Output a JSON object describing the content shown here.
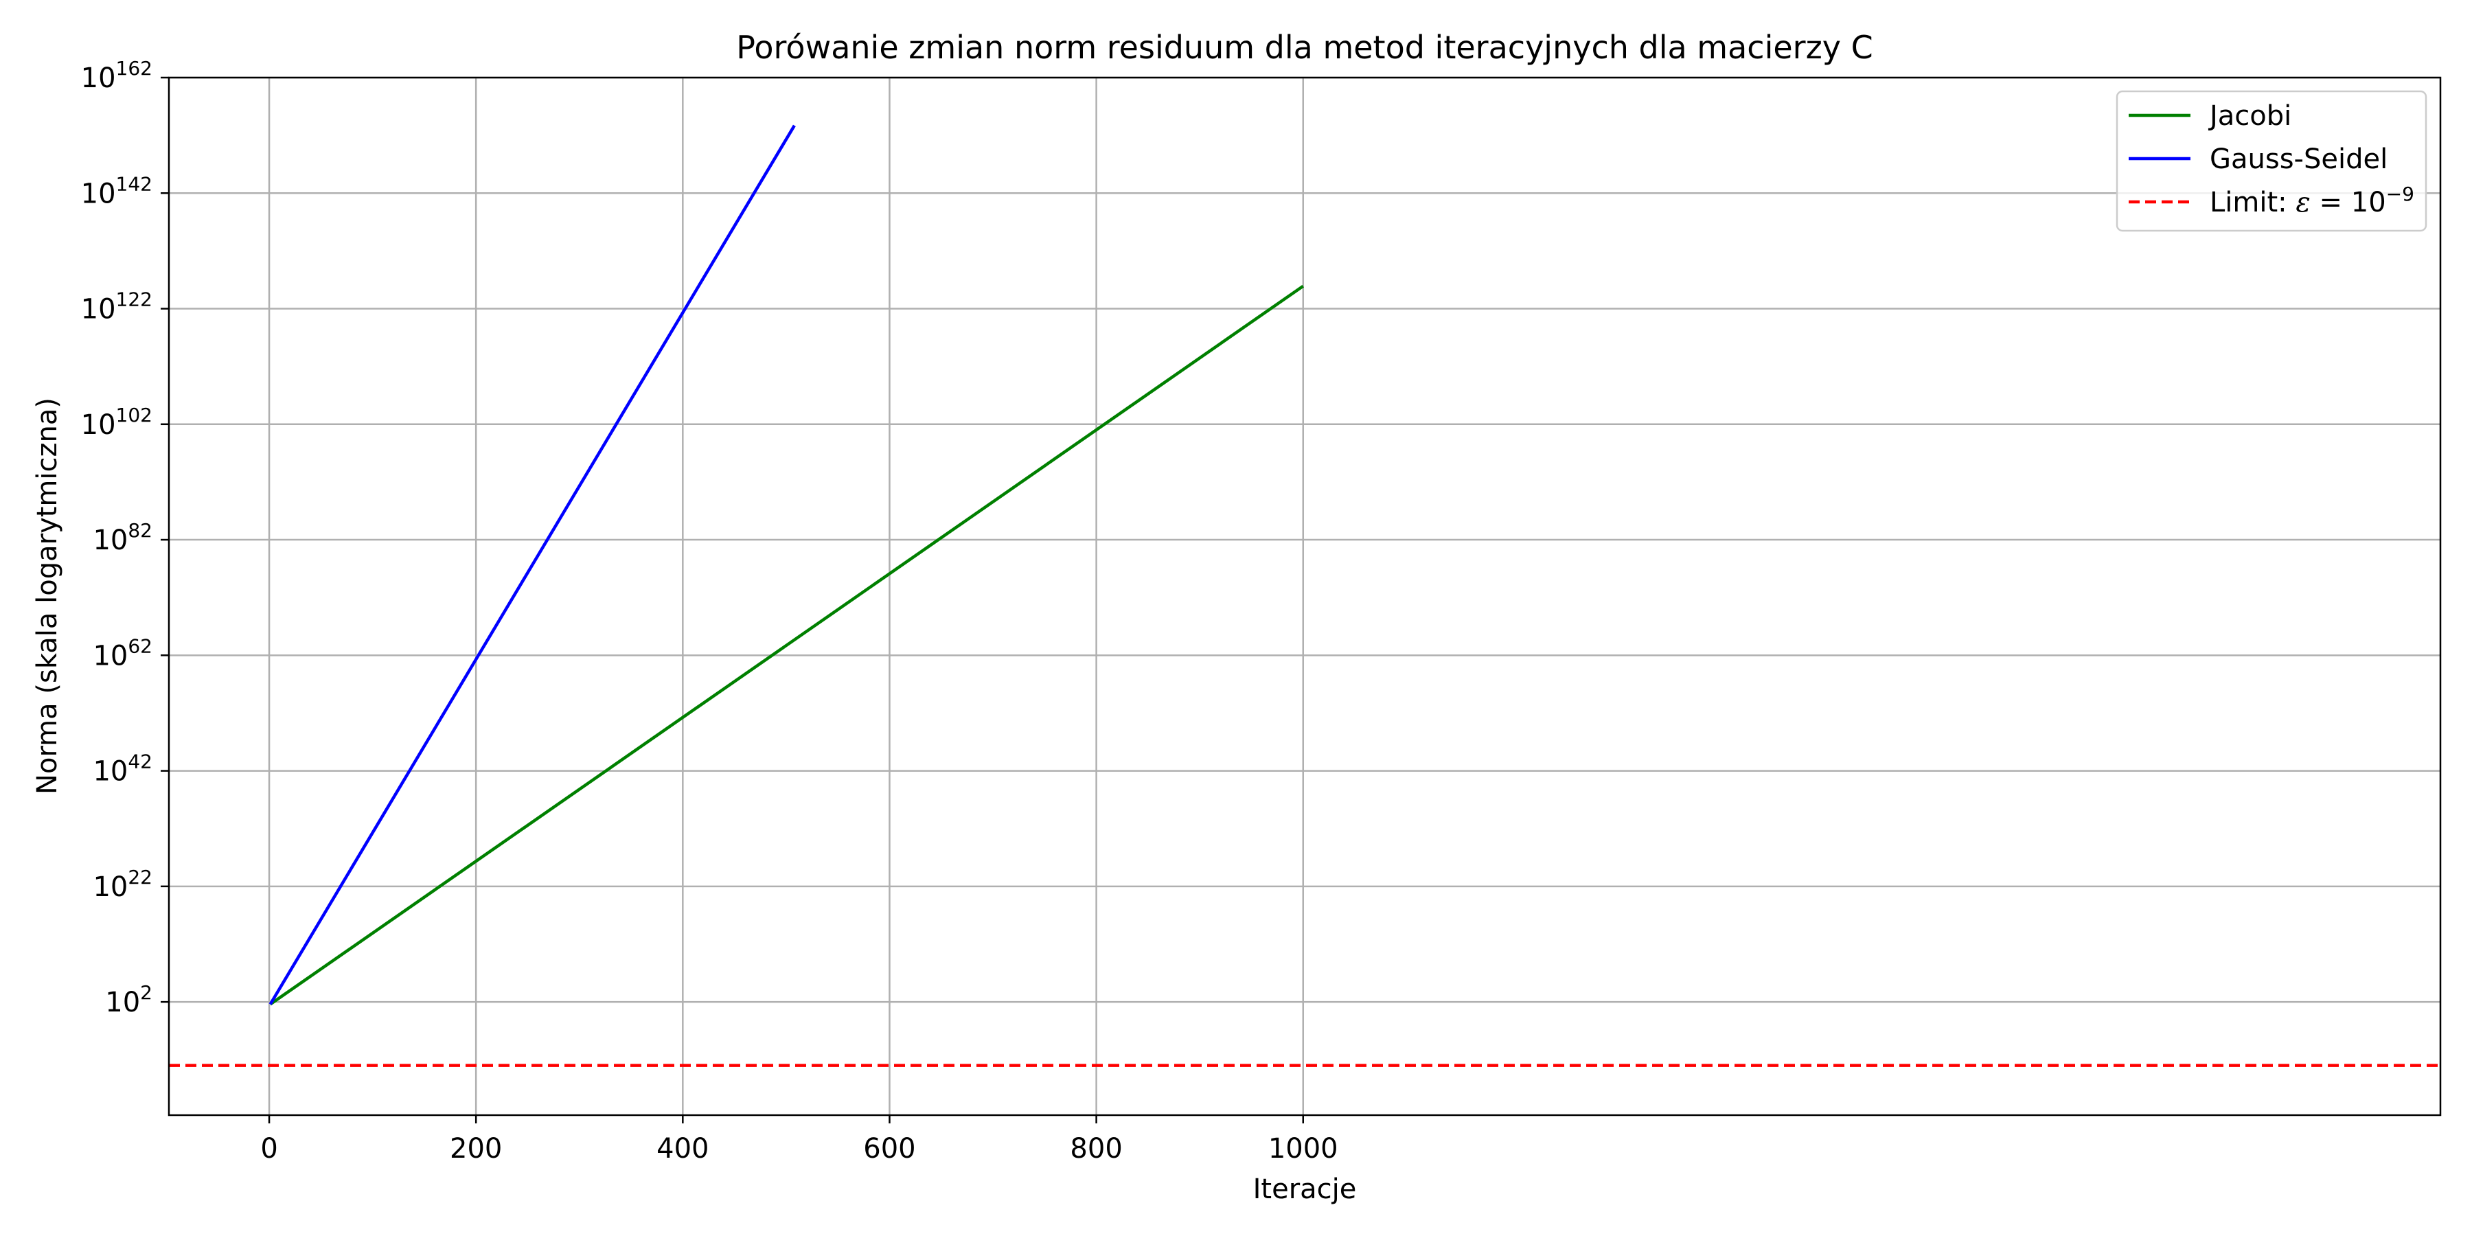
{
  "chart_data": {
    "type": "line",
    "title": "Porówanie zmian norm residuum dla metod iteracyjnych dla macierzy C",
    "xlabel": "Iteracje",
    "ylabel": "Norma (skala logarytmiczna)",
    "yscale": "log",
    "xlim": [
      -97,
      2100
    ],
    "ylim_log10": [
      -17.6,
      162
    ],
    "xticks": [
      0,
      200,
      400,
      600,
      800,
      1000
    ],
    "yticks": [
      {
        "base": "10",
        "exp": "2",
        "value_log10": 2
      },
      {
        "base": "10",
        "exp": "22",
        "value_log10": 22
      },
      {
        "base": "10",
        "exp": "42",
        "value_log10": 42
      },
      {
        "base": "10",
        "exp": "62",
        "value_log10": 62
      },
      {
        "base": "10",
        "exp": "82",
        "value_log10": 82
      },
      {
        "base": "10",
        "exp": "102",
        "value_log10": 102
      },
      {
        "base": "10",
        "exp": "122",
        "value_log10": 122
      },
      {
        "base": "10",
        "exp": "142",
        "value_log10": 142
      },
      {
        "base": "10",
        "exp": "162",
        "value_log10": 162
      }
    ],
    "grid": true,
    "legend_position": "top-right",
    "series": [
      {
        "name": "Jacobi",
        "color": "#008000",
        "style": "solid",
        "x": [
          1,
          1000
        ],
        "y_log10": [
          1.6,
          125.9
        ]
      },
      {
        "name": "Gauss-Seidel",
        "color": "#0000ff",
        "style": "solid",
        "x": [
          1,
          508
        ],
        "y_log10": [
          1.6,
          153.7
        ]
      }
    ],
    "hline": {
      "label_prefix": "Limit: ",
      "symbol": "ε",
      "equals": " = 10",
      "exp": "−9",
      "color": "#ff0000",
      "style": "dashed",
      "y_log10": -9
    }
  }
}
